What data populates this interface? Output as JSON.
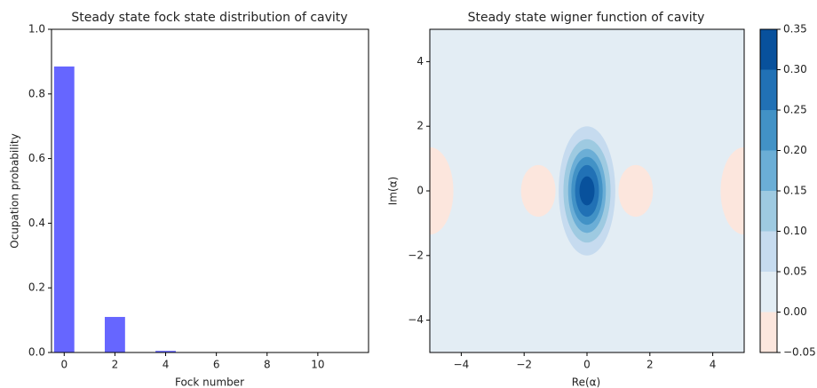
{
  "chart_data": [
    {
      "type": "bar",
      "title": "Steady state fock state distribution of cavity",
      "xlabel": "Fock number",
      "ylabel": "Ocupation probability",
      "x": [
        0,
        1,
        2,
        3,
        4,
        5,
        6,
        7,
        8,
        9,
        10,
        11
      ],
      "values": [
        0.885,
        0,
        0.11,
        0,
        0.005,
        0,
        0,
        0,
        0,
        0,
        0,
        0
      ],
      "color": "#6666ff",
      "xlim": [
        -0.5,
        12
      ],
      "xticks": [
        0,
        2,
        4,
        6,
        8,
        10
      ],
      "ylim": [
        0,
        1
      ],
      "yticks": [
        {
          "value": 0,
          "label": "0.0"
        },
        0.2,
        0.4,
        0.6,
        0.8,
        {
          "value": 1,
          "label": "1.0"
        }
      ]
    },
    {
      "type": "contour",
      "title": "Steady state wigner function of cavity",
      "xlabel": "Re(α)",
      "ylabel": "Im(α)",
      "xlim": [
        -5,
        5
      ],
      "ylim": [
        -5,
        5
      ],
      "xticks": [
        {
          "value": -4,
          "label": "−4"
        },
        {
          "value": -2,
          "label": "−2"
        },
        0,
        2,
        4
      ],
      "yticks": [
        {
          "value": -4,
          "label": "−4"
        },
        {
          "value": -2,
          "label": "−2"
        },
        0,
        2,
        4
      ],
      "levels": [
        -0.05,
        0,
        0.05,
        0.1,
        0.15,
        0.2,
        0.25,
        0.3,
        0.35
      ],
      "colors": [
        "#fce6dd",
        "#e3edf4",
        "#c6dbef",
        "#9ecae1",
        "#6baed6",
        "#4292c6",
        "#2171b5",
        "#08519c"
      ],
      "clim": [
        -0.05,
        0.35
      ],
      "cticks": [
        {
          "value": -0.05,
          "label": "−0.05"
        },
        {
          "value": 0,
          "label": "0.00"
        },
        {
          "value": 0.05,
          "label": "0.05"
        },
        {
          "value": 0.1,
          "label": "0.10"
        },
        {
          "value": 0.15,
          "label": "0.15"
        },
        {
          "value": 0.2,
          "label": "0.20"
        },
        {
          "value": 0.25,
          "label": "0.25"
        },
        {
          "value": 0.3,
          "label": "0.30"
        },
        0.35
      ],
      "regions": [
        {
          "level": -0.05,
          "cx": -5,
          "cy": 0,
          "rx": 0.75,
          "ry": 1.35
        },
        {
          "level": -0.05,
          "cx": 5,
          "cy": 0,
          "rx": 0.75,
          "ry": 1.35
        },
        {
          "level": -0.05,
          "cx": -1.55,
          "cy": 0,
          "rx": 0.55,
          "ry": 0.8
        },
        {
          "level": -0.05,
          "cx": 1.55,
          "cy": 0,
          "rx": 0.55,
          "ry": 0.8
        },
        {
          "level": 0.05,
          "cx": 0,
          "cy": 0,
          "rx": 0.9,
          "ry": 2.0
        },
        {
          "level": 0.1,
          "cx": 0,
          "cy": 0,
          "rx": 0.75,
          "ry": 1.6
        },
        {
          "level": 0.15,
          "cx": 0,
          "cy": 0,
          "rx": 0.6,
          "ry": 1.3
        },
        {
          "level": 0.2,
          "cx": 0,
          "cy": 0,
          "rx": 0.5,
          "ry": 1.05
        },
        {
          "level": 0.25,
          "cx": 0,
          "cy": 0,
          "rx": 0.38,
          "ry": 0.8
        },
        {
          "level": 0.3,
          "cx": 0,
          "cy": 0,
          "rx": 0.24,
          "ry": 0.45
        }
      ]
    }
  ]
}
